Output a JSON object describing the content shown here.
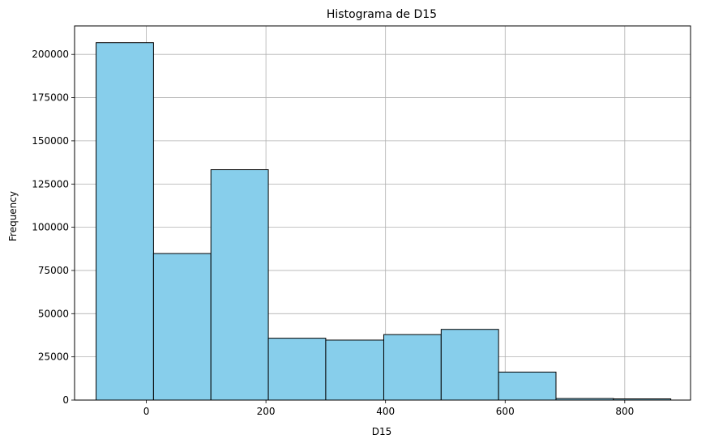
{
  "chart_data": {
    "type": "bar",
    "title": "Histograma de D15",
    "xlabel": "D15",
    "ylabel": "Frequency",
    "xlim": [
      -120,
      910
    ],
    "ylim": [
      0,
      216500
    ],
    "grid": true,
    "bar_color": "#87CEEB",
    "edge_color": "#000000",
    "bins": [
      {
        "x0": -84,
        "x1": 12,
        "value": 206800
      },
      {
        "x0": 12,
        "x1": 108,
        "value": 84800
      },
      {
        "x0": 108,
        "x1": 204,
        "value": 133300
      },
      {
        "x0": 204,
        "x1": 300,
        "value": 35800
      },
      {
        "x0": 300,
        "x1": 397,
        "value": 34700
      },
      {
        "x0": 397,
        "x1": 493,
        "value": 37900
      },
      {
        "x0": 493,
        "x1": 589,
        "value": 40900
      },
      {
        "x0": 589,
        "x1": 685,
        "value": 16200
      },
      {
        "x0": 685,
        "x1": 781,
        "value": 900
      },
      {
        "x0": 781,
        "x1": 877,
        "value": 700
      }
    ],
    "xticks": [
      {
        "value": 0,
        "label": "0"
      },
      {
        "value": 200,
        "label": "200"
      },
      {
        "value": 400,
        "label": "400"
      },
      {
        "value": 600,
        "label": "600"
      },
      {
        "value": 800,
        "label": "800"
      }
    ],
    "yticks": [
      {
        "value": 0,
        "label": "0"
      },
      {
        "value": 25000,
        "label": "25000"
      },
      {
        "value": 50000,
        "label": "50000"
      },
      {
        "value": 75000,
        "label": "75000"
      },
      {
        "value": 100000,
        "label": "100000"
      },
      {
        "value": 125000,
        "label": "125000"
      },
      {
        "value": 150000,
        "label": "150000"
      },
      {
        "value": 175000,
        "label": "175000"
      },
      {
        "value": 200000,
        "label": "200000"
      }
    ]
  }
}
